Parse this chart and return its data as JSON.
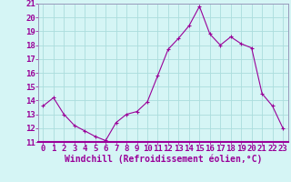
{
  "x": [
    0,
    1,
    2,
    3,
    4,
    5,
    6,
    7,
    8,
    9,
    10,
    11,
    12,
    13,
    14,
    15,
    16,
    17,
    18,
    19,
    20,
    21,
    22,
    23
  ],
  "y": [
    13.6,
    14.2,
    13.0,
    12.2,
    11.8,
    11.4,
    11.1,
    12.4,
    13.0,
    13.2,
    13.9,
    15.8,
    17.7,
    18.5,
    19.4,
    20.8,
    18.8,
    18.0,
    18.6,
    18.1,
    17.8,
    14.5,
    13.6,
    12.0
  ],
  "xlabel": "Windchill (Refroidissement éolien,°C)",
  "ylim": [
    11,
    21
  ],
  "xlim": [
    -0.5,
    23.5
  ],
  "yticks": [
    11,
    12,
    13,
    14,
    15,
    16,
    17,
    18,
    19,
    20,
    21
  ],
  "xticks": [
    0,
    1,
    2,
    3,
    4,
    5,
    6,
    7,
    8,
    9,
    10,
    11,
    12,
    13,
    14,
    15,
    16,
    17,
    18,
    19,
    20,
    21,
    22,
    23
  ],
  "line_color": "#990099",
  "marker_color": "#990099",
  "bg_color": "#d5f5f5",
  "grid_color": "#aadddd",
  "tick_label_color": "#990099",
  "axis_label_color": "#990099",
  "font_size": 6.5
}
